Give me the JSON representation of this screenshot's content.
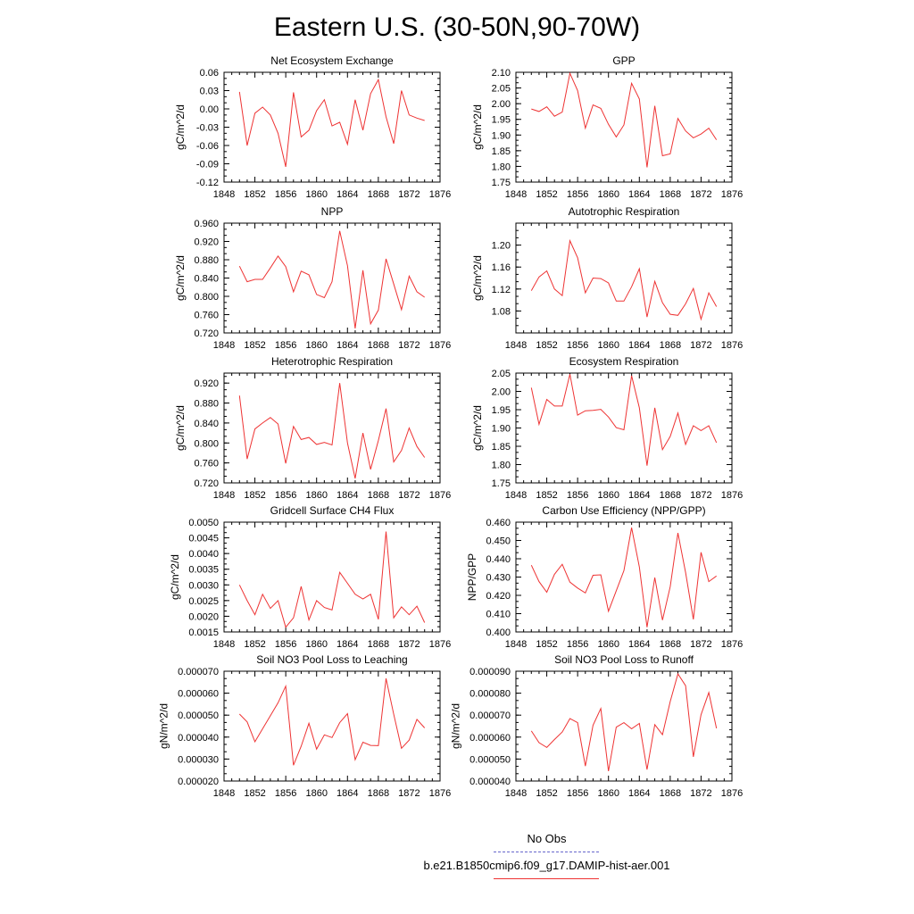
{
  "page_title": "Eastern U.S. (30-50N,90-70W)",
  "legend": {
    "obs_label": "No Obs",
    "obs_color": "#6666cc",
    "model_label": "b.e21.B1850cmip6.f09_g17.DAMIP-hist-aer.001",
    "model_color": "#ee3333"
  },
  "chart_data": [
    {
      "type": "line",
      "title": "Net Ecosystem Exchange",
      "ylabel": "gC/m^2/d",
      "xlim": [
        1848,
        1876
      ],
      "ylim": [
        -0.12,
        0.06
      ],
      "xticks": [
        "1848",
        "1852",
        "1856",
        "1860",
        "1864",
        "1868",
        "1872",
        "1876"
      ],
      "yticks": [
        "-0.12",
        "-0.09",
        "-0.06",
        "-0.03",
        "0.00",
        "0.03",
        "0.06"
      ],
      "x": [
        1850,
        1851,
        1852,
        1853,
        1854,
        1855,
        1856,
        1857,
        1858,
        1859,
        1860,
        1861,
        1862,
        1863,
        1864,
        1865,
        1866,
        1867,
        1868,
        1869,
        1870,
        1871,
        1872,
        1873,
        1874
      ],
      "series": [
        {
          "values": [
            0.028,
            -0.06,
            -0.007,
            0.003,
            -0.01,
            -0.04,
            -0.095,
            0.027,
            -0.046,
            -0.035,
            -0.003,
            0.015,
            -0.028,
            -0.022,
            -0.058,
            0.015,
            -0.035,
            0.025,
            0.048,
            -0.013,
            -0.057,
            0.03,
            -0.01,
            -0.015,
            -0.019
          ]
        }
      ]
    },
    {
      "type": "line",
      "title": "GPP",
      "ylabel": "gC/m^2/d",
      "xlim": [
        1848,
        1876
      ],
      "ylim": [
        1.75,
        2.1
      ],
      "xticks": [
        "1848",
        "1852",
        "1856",
        "1860",
        "1864",
        "1868",
        "1872",
        "1876"
      ],
      "yticks": [
        "1.75",
        "1.80",
        "1.85",
        "1.90",
        "1.95",
        "2.00",
        "2.05",
        "2.10"
      ],
      "x": [
        1850,
        1851,
        1852,
        1853,
        1854,
        1855,
        1856,
        1857,
        1858,
        1859,
        1860,
        1861,
        1862,
        1863,
        1864,
        1865,
        1866,
        1867,
        1868,
        1869,
        1870,
        1871,
        1872,
        1873,
        1874
      ],
      "series": [
        {
          "values": [
            1.983,
            1.975,
            1.99,
            1.96,
            1.973,
            2.097,
            2.042,
            1.922,
            1.996,
            1.985,
            1.934,
            1.894,
            1.932,
            2.065,
            2.015,
            1.797,
            1.993,
            1.834,
            1.84,
            1.953,
            1.913,
            1.891,
            1.903,
            1.922,
            1.885
          ]
        }
      ]
    },
    {
      "type": "line",
      "title": "NPP",
      "ylabel": "gC/m^2/d",
      "xlim": [
        1848,
        1876
      ],
      "ylim": [
        0.72,
        0.96
      ],
      "xticks": [
        "1848",
        "1852",
        "1856",
        "1860",
        "1864",
        "1868",
        "1872",
        "1876"
      ],
      "yticks": [
        "0.720",
        "0.760",
        "0.800",
        "0.840",
        "0.880",
        "0.920",
        "0.960"
      ],
      "x": [
        1850,
        1851,
        1852,
        1853,
        1854,
        1855,
        1856,
        1857,
        1858,
        1859,
        1860,
        1861,
        1862,
        1863,
        1864,
        1865,
        1866,
        1867,
        1868,
        1869,
        1870,
        1871,
        1872,
        1873,
        1874
      ],
      "series": [
        {
          "values": [
            0.866,
            0.832,
            0.837,
            0.837,
            0.862,
            0.888,
            0.865,
            0.81,
            0.855,
            0.847,
            0.804,
            0.797,
            0.832,
            0.943,
            0.867,
            0.73,
            0.857,
            0.74,
            0.77,
            0.882,
            0.827,
            0.771,
            0.844,
            0.81,
            0.798
          ]
        }
      ]
    },
    {
      "type": "line",
      "title": "Autotrophic Respiration",
      "ylabel": "gC/m^2/d",
      "xlim": [
        1848,
        1876
      ],
      "ylim": [
        1.04,
        1.24
      ],
      "xticks": [
        "1848",
        "1852",
        "1856",
        "1860",
        "1864",
        "1868",
        "1872",
        "1876"
      ],
      "yticks": [
        "1.08",
        "1.12",
        "1.16",
        "1.20"
      ],
      "x": [
        1850,
        1851,
        1852,
        1853,
        1854,
        1855,
        1856,
        1857,
        1858,
        1859,
        1860,
        1861,
        1862,
        1863,
        1864,
        1865,
        1866,
        1867,
        1868,
        1869,
        1870,
        1871,
        1872,
        1873,
        1874
      ],
      "series": [
        {
          "values": [
            1.117,
            1.142,
            1.153,
            1.12,
            1.108,
            1.208,
            1.177,
            1.113,
            1.14,
            1.139,
            1.131,
            1.098,
            1.098,
            1.124,
            1.157,
            1.069,
            1.134,
            1.095,
            1.074,
            1.072,
            1.093,
            1.121,
            1.065,
            1.113,
            1.088
          ]
        }
      ]
    },
    {
      "type": "line",
      "title": "Heterotrophic Respiration",
      "ylabel": "gC/m^2/d",
      "xlim": [
        1848,
        1876
      ],
      "ylim": [
        0.72,
        0.94
      ],
      "xticks": [
        "1848",
        "1852",
        "1856",
        "1860",
        "1864",
        "1868",
        "1872",
        "1876"
      ],
      "yticks": [
        "0.720",
        "0.760",
        "0.800",
        "0.840",
        "0.880",
        "0.920"
      ],
      "x": [
        1850,
        1851,
        1852,
        1853,
        1854,
        1855,
        1856,
        1857,
        1858,
        1859,
        1860,
        1861,
        1862,
        1863,
        1864,
        1865,
        1866,
        1867,
        1868,
        1869,
        1870,
        1871,
        1872,
        1873,
        1874
      ],
      "series": [
        {
          "values": [
            0.895,
            0.768,
            0.828,
            0.84,
            0.851,
            0.838,
            0.759,
            0.833,
            0.807,
            0.811,
            0.797,
            0.801,
            0.796,
            0.92,
            0.8,
            0.729,
            0.82,
            0.747,
            0.805,
            0.869,
            0.762,
            0.785,
            0.83,
            0.793,
            0.771
          ]
        }
      ]
    },
    {
      "type": "line",
      "title": "Ecosystem Respiration",
      "ylabel": "gC/m^2/d",
      "xlim": [
        1848,
        1876
      ],
      "ylim": [
        1.75,
        2.05
      ],
      "xticks": [
        "1848",
        "1852",
        "1856",
        "1860",
        "1864",
        "1868",
        "1872",
        "1876"
      ],
      "yticks": [
        "1.75",
        "1.80",
        "1.85",
        "1.90",
        "1.95",
        "2.00",
        "2.05"
      ],
      "x": [
        1850,
        1851,
        1852,
        1853,
        1854,
        1855,
        1856,
        1857,
        1858,
        1859,
        1860,
        1861,
        1862,
        1863,
        1864,
        1865,
        1866,
        1867,
        1868,
        1869,
        1870,
        1871,
        1872,
        1873,
        1874
      ],
      "series": [
        {
          "values": [
            2.01,
            1.91,
            1.978,
            1.96,
            1.96,
            2.047,
            1.935,
            1.947,
            1.948,
            1.951,
            1.93,
            1.901,
            1.895,
            2.043,
            1.955,
            1.797,
            1.955,
            1.841,
            1.877,
            1.941,
            1.855,
            1.906,
            1.893,
            1.906,
            1.86
          ]
        }
      ]
    },
    {
      "type": "line",
      "title": "Gridcell Surface CH4 Flux",
      "ylabel": "gC/m^2/d",
      "xlim": [
        1848,
        1876
      ],
      "ylim": [
        0.0015,
        0.005
      ],
      "xticks": [
        "1848",
        "1852",
        "1856",
        "1860",
        "1864",
        "1868",
        "1872",
        "1876"
      ],
      "yticks": [
        "0.0015",
        "0.0020",
        "0.0025",
        "0.0030",
        "0.0035",
        "0.0040",
        "0.0045",
        "0.0050"
      ],
      "x": [
        1850,
        1851,
        1852,
        1853,
        1854,
        1855,
        1856,
        1857,
        1858,
        1859,
        1860,
        1861,
        1862,
        1863,
        1864,
        1865,
        1866,
        1867,
        1868,
        1869,
        1870,
        1871,
        1872,
        1873,
        1874
      ],
      "series": [
        {
          "values": [
            0.003,
            0.0025,
            0.00205,
            0.0027,
            0.00225,
            0.0025,
            0.00165,
            0.00195,
            0.00295,
            0.00188,
            0.0025,
            0.00228,
            0.0022,
            0.0034,
            0.00305,
            0.0027,
            0.00255,
            0.0027,
            0.0019,
            0.0047,
            0.00195,
            0.0023,
            0.00205,
            0.00232,
            0.0018
          ]
        }
      ]
    },
    {
      "type": "line",
      "title": "Carbon Use Efficiency (NPP/GPP)",
      "ylabel": "NPP/GPP",
      "xlim": [
        1848,
        1876
      ],
      "ylim": [
        0.4,
        0.46
      ],
      "xticks": [
        "1848",
        "1852",
        "1856",
        "1860",
        "1864",
        "1868",
        "1872",
        "1876"
      ],
      "yticks": [
        "0.400",
        "0.410",
        "0.420",
        "0.430",
        "0.440",
        "0.450",
        "0.460"
      ],
      "x": [
        1850,
        1851,
        1852,
        1853,
        1854,
        1855,
        1856,
        1857,
        1858,
        1859,
        1860,
        1861,
        1862,
        1863,
        1864,
        1865,
        1866,
        1867,
        1868,
        1869,
        1870,
        1871,
        1872,
        1873,
        1874
      ],
      "series": [
        {
          "values": [
            0.4365,
            0.4275,
            0.4217,
            0.4315,
            0.437,
            0.4272,
            0.424,
            0.4213,
            0.431,
            0.4312,
            0.4113,
            0.4225,
            0.4335,
            0.457,
            0.4355,
            0.4026,
            0.4297,
            0.4065,
            0.4248,
            0.4541,
            0.4325,
            0.4069,
            0.4435,
            0.4275,
            0.4306
          ]
        }
      ]
    },
    {
      "type": "line",
      "title": "Soil NO3 Pool Loss to Leaching",
      "ylabel": "gN/m^2/d",
      "xlim": [
        1848,
        1876
      ],
      "ylim": [
        2e-05,
        7e-05
      ],
      "xticks": [
        "1848",
        "1852",
        "1856",
        "1860",
        "1864",
        "1868",
        "1872",
        "1876"
      ],
      "yticks": [
        "0.000020",
        "0.000030",
        "0.000040",
        "0.000050",
        "0.000060",
        "0.000070"
      ],
      "x": [
        1850,
        1851,
        1852,
        1853,
        1854,
        1855,
        1856,
        1857,
        1858,
        1859,
        1860,
        1861,
        1862,
        1863,
        1864,
        1865,
        1866,
        1867,
        1868,
        1869,
        1870,
        1871,
        1872,
        1873,
        1874
      ],
      "series": [
        {
          "values": [
            5.05e-05,
            4.69e-05,
            3.79e-05,
            4.38e-05,
            4.97e-05,
            5.56e-05,
            6.32e-05,
            2.72e-05,
            3.58e-05,
            4.63e-05,
            3.45e-05,
            4.1e-05,
            3.98e-05,
            4.66e-05,
            5.07e-05,
            2.97e-05,
            3.77e-05,
            3.62e-05,
            3.61e-05,
            6.67e-05,
            5.04e-05,
            3.49e-05,
            3.86e-05,
            4.81e-05,
            4.42e-05
          ]
        }
      ]
    },
    {
      "type": "line",
      "title": "Soil NO3 Pool Loss to Runoff",
      "ylabel": "gN/m^2/d",
      "xlim": [
        1848,
        1876
      ],
      "ylim": [
        4e-05,
        9e-05
      ],
      "xticks": [
        "1848",
        "1852",
        "1856",
        "1860",
        "1864",
        "1868",
        "1872",
        "1876"
      ],
      "yticks": [
        "0.000040",
        "0.000050",
        "0.000060",
        "0.000070",
        "0.000080",
        "0.000090"
      ],
      "x": [
        1850,
        1851,
        1852,
        1853,
        1854,
        1855,
        1856,
        1857,
        1858,
        1859,
        1860,
        1861,
        1862,
        1863,
        1864,
        1865,
        1866,
        1867,
        1868,
        1869,
        1870,
        1871,
        1872,
        1873,
        1874
      ],
      "series": [
        {
          "values": [
            6.28e-05,
            5.75e-05,
            5.53e-05,
            5.89e-05,
            6.23e-05,
            6.84e-05,
            6.66e-05,
            4.68e-05,
            6.54e-05,
            7.3e-05,
            4.45e-05,
            6.45e-05,
            6.66e-05,
            6.38e-05,
            6.62e-05,
            4.52e-05,
            6.57e-05,
            6.11e-05,
            7.62e-05,
            8.88e-05,
            8.34e-05,
            5.1e-05,
            7.02e-05,
            8.03e-05,
            6.4e-05
          ]
        }
      ]
    }
  ]
}
